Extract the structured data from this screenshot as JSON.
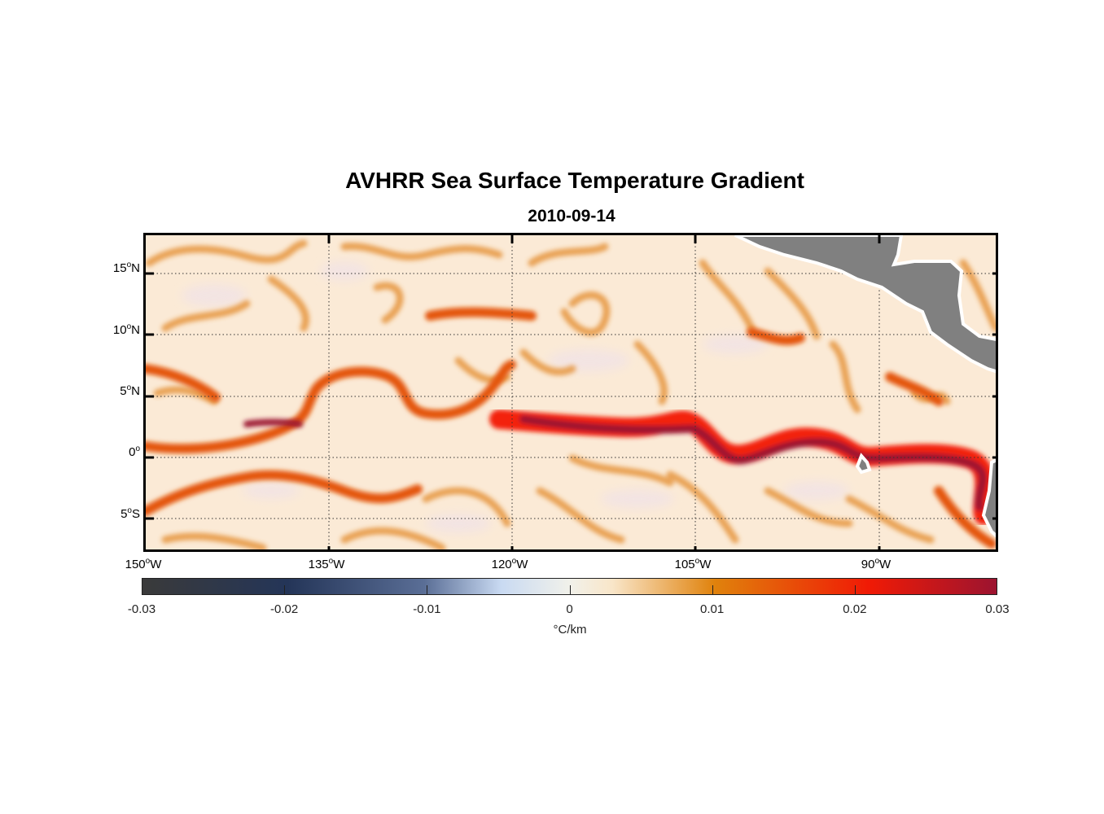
{
  "title": "AVHRR Sea Surface Temperature Gradient",
  "subtitle": "2010-09-14",
  "map": {
    "extent": {
      "lon": [
        -150,
        -80
      ],
      "lat": [
        -8,
        18
      ]
    },
    "lat_labels": [
      {
        "deg": "15",
        "hemi": "N",
        "value": 15
      },
      {
        "deg": "10",
        "hemi": "N",
        "value": 10
      },
      {
        "deg": "5",
        "hemi": "N",
        "value": 5
      },
      {
        "deg": "0",
        "hemi": "",
        "value": 0
      },
      {
        "deg": "5",
        "hemi": "S",
        "value": -5
      }
    ],
    "lon_labels": [
      {
        "deg": "150",
        "hemi": "W",
        "value": -150
      },
      {
        "deg": "135",
        "hemi": "W",
        "value": -135
      },
      {
        "deg": "120",
        "hemi": "W",
        "value": -120
      },
      {
        "deg": "105",
        "hemi": "W",
        "value": -105
      },
      {
        "deg": "90",
        "hemi": "W",
        "value": -90
      }
    ],
    "land_color": "#808080",
    "ocean_base_color": "#fbead6"
  },
  "colorbar": {
    "range": [
      -0.03,
      0.03
    ],
    "ticks": [
      "-0.03",
      "-0.02",
      "-0.01",
      "0",
      "0.01",
      "0.02",
      "0.03"
    ],
    "units": "°C/km",
    "colors": [
      "#3a3a3a",
      "#243558",
      "#5a6e96",
      "#c9daf2",
      "#f1f1ea",
      "#f9e6c9",
      "#e0820c",
      "#f01a05",
      "#9c1430"
    ]
  }
}
